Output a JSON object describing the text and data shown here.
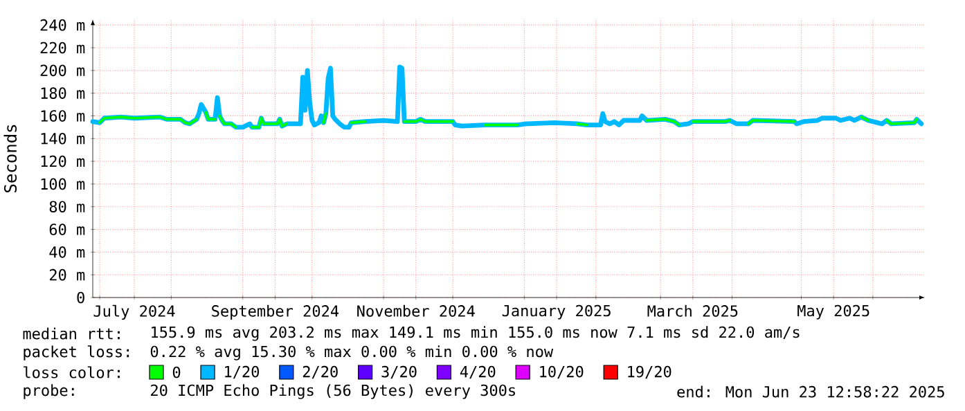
{
  "chart_data": {
    "type": "line",
    "ylabel": "Seconds",
    "legend_title": "loss color:",
    "legend": "bottom",
    "grid": true,
    "marker": "none",
    "line_style": "solid",
    "xlim": [
      "2024-06-28",
      "2025-06-23T12:58"
    ],
    "ylim": [
      0,
      245
    ],
    "xticks": [
      {
        "value": "2024-07-01",
        "label": null
      },
      {
        "value": "2024-07-16",
        "label": "July 2024"
      },
      {
        "value": "2024-08-01",
        "label": null
      },
      {
        "value": "2024-09-01",
        "label": null
      },
      {
        "value": "2024-09-15",
        "label": "September 2024"
      },
      {
        "value": "2024-10-01",
        "label": null
      },
      {
        "value": "2024-11-01",
        "label": null
      },
      {
        "value": "2024-11-15",
        "label": "November 2024"
      },
      {
        "value": "2024-12-01",
        "label": null
      },
      {
        "value": "2025-01-01",
        "label": null
      },
      {
        "value": "2025-01-15",
        "label": "January 2025"
      },
      {
        "value": "2025-02-01",
        "label": null
      },
      {
        "value": "2025-03-01",
        "label": null
      },
      {
        "value": "2025-03-15",
        "label": "March 2025"
      },
      {
        "value": "2025-04-01",
        "label": null
      },
      {
        "value": "2025-05-01",
        "label": null
      },
      {
        "value": "2025-05-15",
        "label": "May 2025"
      },
      {
        "value": "2025-06-01",
        "label": null
      }
    ],
    "yticks": [
      0,
      {
        "value": 20,
        "label": "20 m"
      },
      {
        "value": 40,
        "label": "40 m"
      },
      {
        "value": 60,
        "label": "60 m"
      },
      {
        "value": 80,
        "label": "80 m"
      },
      {
        "value": 100,
        "label": "100 m"
      },
      {
        "value": 120,
        "label": "120 m"
      },
      {
        "value": 140,
        "label": "140 m"
      },
      {
        "value": 160,
        "label": "160 m"
      },
      {
        "value": 180,
        "label": "180 m"
      },
      {
        "value": 200,
        "label": "200 m"
      },
      {
        "value": 220,
        "label": "220 m"
      },
      {
        "value": 240,
        "label": "240 m"
      }
    ],
    "x": [
      "2024-06-28",
      "2024-07-01",
      "2024-07-03",
      "2024-07-10",
      "2024-07-16",
      "2024-07-27",
      "2024-07-30",
      "2024-08-05",
      "2024-08-07",
      "2024-08-09",
      "2024-08-12",
      "2024-08-13",
      "2024-08-14",
      "2024-08-16",
      "2024-08-17",
      "2024-08-20",
      "2024-08-21",
      "2024-08-22",
      "2024-08-23",
      "2024-08-24",
      "2024-08-27",
      "2024-08-29",
      "2024-09-01",
      "2024-09-04",
      "2024-09-05",
      "2024-09-08",
      "2024-09-09",
      "2024-09-10",
      "2024-09-16",
      "2024-09-17",
      "2024-09-18",
      "2024-09-20",
      "2024-09-26",
      "2024-09-27",
      "2024-09-28",
      "2024-09-29",
      "2024-09-30",
      "2024-10-01",
      "2024-10-02",
      "2024-10-04",
      "2024-10-05",
      "2024-10-06",
      "2024-10-07",
      "2024-10-08",
      "2024-10-09",
      "2024-10-10",
      "2024-10-11",
      "2024-10-13",
      "2024-10-15",
      "2024-10-17",
      "2024-10-18",
      "2024-10-24",
      "2024-11-01",
      "2024-11-07",
      "2024-11-08",
      "2024-11-09",
      "2024-11-10",
      "2024-11-15",
      "2024-11-17",
      "2024-11-19",
      "2024-12-01",
      "2024-12-02",
      "2024-12-05",
      "2024-12-15",
      "2024-12-29",
      "2025-01-02",
      "2025-01-14",
      "2025-01-24",
      "2025-01-28",
      "2025-02-03",
      "2025-02-04",
      "2025-02-05",
      "2025-02-07",
      "2025-02-09",
      "2025-02-11",
      "2025-02-13",
      "2025-02-20",
      "2025-02-21",
      "2025-02-23",
      "2025-03-03",
      "2025-03-07",
      "2025-03-09",
      "2025-03-13",
      "2025-03-15",
      "2025-03-29",
      "2025-03-31",
      "2025-04-03",
      "2025-04-08",
      "2025-04-10",
      "2025-04-28",
      "2025-04-29",
      "2025-05-02",
      "2025-05-08",
      "2025-05-10",
      "2025-05-16",
      "2025-05-18",
      "2025-05-22",
      "2025-05-24",
      "2025-05-27",
      "2025-05-30",
      "2025-06-01",
      "2025-06-05",
      "2025-06-07",
      "2025-06-09",
      "2025-06-19",
      "2025-06-20",
      "2025-06-22"
    ],
    "series": [
      {
        "name": "0",
        "color": "#00ff00",
        "values": [
          null,
          154,
          158,
          159,
          158,
          159,
          157,
          157,
          154,
          153,
          157,
          null,
          null,
          163,
          157,
          157,
          null,
          160,
          156,
          153,
          153,
          150,
          null,
          null,
          150,
          150,
          158,
          153,
          153,
          157,
          151,
          153,
          null,
          null,
          null,
          null,
          null,
          null,
          null,
          null,
          null,
          154,
          162,
          null,
          null,
          null,
          null,
          null,
          null,
          null,
          154,
          155,
          null,
          null,
          null,
          null,
          155,
          155,
          157,
          155,
          155,
          null,
          null,
          152,
          152,
          null,
          null,
          153,
          152,
          null,
          null,
          null,
          null,
          null,
          null,
          null,
          null,
          null,
          156,
          157,
          155,
          152,
          null,
          155,
          155,
          156,
          null,
          153,
          156,
          155,
          null,
          null,
          null,
          null,
          null,
          null,
          null,
          null,
          159,
          156,
          null,
          null,
          156,
          153,
          154,
          157,
          null
        ]
      },
      {
        "name": "1/20",
        "color": "#00b8ff",
        "values": [
          155,
          154,
          158,
          159,
          158,
          159,
          157,
          157,
          154,
          153,
          157,
          162,
          170,
          163,
          157,
          157,
          176,
          160,
          156,
          153,
          153,
          150,
          150,
          153,
          150,
          150,
          158,
          153,
          153,
          157,
          151,
          153,
          153,
          194,
          165,
          200,
          172,
          156,
          152,
          154,
          160,
          154,
          162,
          193,
          202,
          160,
          157,
          153,
          150,
          150,
          154,
          155,
          156,
          155,
          203,
          202,
          155,
          155,
          157,
          155,
          155,
          152,
          151,
          152,
          152,
          153,
          154,
          153,
          152,
          152,
          162,
          155,
          153,
          155,
          152,
          156,
          156,
          160,
          156,
          157,
          155,
          152,
          153,
          155,
          155,
          156,
          153,
          153,
          156,
          155,
          153,
          155,
          156,
          158,
          158,
          156,
          158,
          156,
          159,
          156,
          155,
          153,
          156,
          153,
          154,
          157,
          153
        ]
      },
      {
        "name": "2/20",
        "color": "#0059ff",
        "values": [
          null,
          null,
          null,
          null,
          null,
          null,
          null,
          null,
          null,
          null,
          null,
          null,
          null,
          null,
          null,
          null,
          null,
          null,
          null,
          null,
          null,
          null,
          null,
          null,
          null,
          null,
          null,
          null,
          null,
          null,
          null,
          null,
          null,
          null,
          null,
          null,
          null,
          null,
          null,
          null,
          null,
          null,
          null,
          null,
          null,
          null,
          null,
          null,
          null,
          null,
          null,
          null,
          null,
          null,
          null,
          null,
          null,
          null,
          null,
          null,
          null,
          null,
          null,
          null,
          null,
          null,
          null,
          null,
          null,
          null,
          null,
          null,
          null,
          null,
          null,
          null,
          null,
          null,
          null,
          null,
          null,
          null,
          null,
          null,
          null,
          null,
          null,
          null,
          null,
          null,
          null,
          null,
          null,
          null,
          null,
          null,
          null,
          null,
          null,
          null,
          null,
          null,
          null,
          null,
          null,
          null,
          null
        ]
      },
      {
        "name": "3/20",
        "color": "#5e00ff",
        "values": [
          null,
          null,
          null,
          null,
          null,
          null,
          null,
          null,
          null,
          null,
          null,
          null,
          null,
          null,
          null,
          null,
          null,
          null,
          null,
          null,
          null,
          null,
          null,
          null,
          null,
          null,
          null,
          null,
          null,
          null,
          null,
          null,
          null,
          null,
          null,
          null,
          null,
          null,
          null,
          null,
          null,
          null,
          null,
          null,
          null,
          null,
          null,
          null,
          null,
          null,
          null,
          null,
          null,
          null,
          null,
          null,
          null,
          null,
          null,
          null,
          null,
          null,
          null,
          null,
          null,
          null,
          null,
          null,
          null,
          null,
          null,
          null,
          null,
          null,
          null,
          null,
          null,
          null,
          null,
          null,
          null,
          null,
          null,
          null,
          null,
          null,
          null,
          null,
          null,
          null,
          null,
          null,
          null,
          null,
          null,
          null,
          null,
          null,
          null,
          null,
          null,
          null,
          null,
          null,
          null,
          null,
          null
        ]
      },
      {
        "name": "4/20",
        "color": "#7e00ff",
        "values": [
          null,
          null,
          null,
          null,
          null,
          null,
          null,
          null,
          null,
          null,
          null,
          null,
          null,
          null,
          null,
          null,
          null,
          null,
          null,
          null,
          null,
          null,
          null,
          null,
          null,
          null,
          null,
          null,
          null,
          null,
          null,
          null,
          null,
          null,
          null,
          null,
          null,
          null,
          null,
          null,
          null,
          null,
          null,
          null,
          null,
          null,
          null,
          null,
          null,
          null,
          null,
          null,
          null,
          null,
          null,
          null,
          null,
          null,
          null,
          null,
          null,
          null,
          null,
          null,
          null,
          null,
          null,
          null,
          null,
          null,
          null,
          null,
          null,
          null,
          null,
          null,
          null,
          null,
          null,
          null,
          null,
          null,
          null,
          null,
          null,
          null,
          null,
          null,
          null,
          null,
          null,
          null,
          null,
          null,
          null,
          null,
          null,
          null,
          null,
          null,
          null,
          null,
          null,
          null,
          null,
          null,
          null
        ]
      },
      {
        "name": "10/20",
        "color": "#dd00ff",
        "values": [
          null,
          null,
          null,
          null,
          null,
          null,
          null,
          null,
          null,
          null,
          null,
          null,
          null,
          null,
          null,
          null,
          null,
          null,
          null,
          null,
          null,
          null,
          null,
          null,
          null,
          null,
          null,
          null,
          null,
          null,
          null,
          null,
          null,
          null,
          null,
          null,
          null,
          null,
          null,
          null,
          null,
          null,
          null,
          null,
          null,
          null,
          null,
          null,
          null,
          null,
          null,
          null,
          null,
          null,
          null,
          null,
          null,
          null,
          null,
          null,
          null,
          null,
          null,
          null,
          null,
          null,
          null,
          null,
          null,
          null,
          null,
          null,
          null,
          null,
          null,
          null,
          null,
          null,
          null,
          null,
          null,
          null,
          null,
          null,
          null,
          null,
          null,
          null,
          null,
          null,
          null,
          null,
          null,
          null,
          null,
          null,
          null,
          null,
          null,
          null,
          null,
          null,
          null,
          null,
          null,
          null,
          null
        ]
      },
      {
        "name": "19/20",
        "color": "#ff0000",
        "values": [
          null,
          null,
          null,
          null,
          null,
          null,
          null,
          null,
          null,
          null,
          null,
          null,
          null,
          null,
          null,
          null,
          null,
          null,
          null,
          null,
          null,
          null,
          null,
          null,
          null,
          null,
          null,
          null,
          null,
          null,
          null,
          null,
          null,
          null,
          null,
          null,
          null,
          null,
          null,
          null,
          null,
          null,
          null,
          null,
          null,
          null,
          null,
          null,
          null,
          null,
          null,
          null,
          null,
          null,
          null,
          null,
          null,
          null,
          null,
          null,
          null,
          null,
          null,
          null,
          null,
          null,
          null,
          null,
          null,
          null,
          null,
          null,
          null,
          null,
          null,
          null,
          null,
          null,
          null,
          null,
          null,
          null,
          null,
          null,
          null,
          null,
          null,
          null,
          null,
          null,
          null,
          null,
          null,
          null,
          null,
          null,
          null,
          null,
          null,
          null,
          null,
          null,
          null,
          null,
          null,
          null,
          null
        ]
      }
    ],
    "annotations": [
      "median rtt:",
      "155.9 ms avg  203.2 ms max  149.1 ms min  155.0 ms now  7.1 ms sd  22.0   am/s",
      "packet loss:",
      "0.22 % avg  15.30 % max  0.00 % min  0.00 % now",
      "probe:",
      "20 ICMP Echo Pings (56 Bytes) every 300s",
      "end: Mon Jun 23 12:58:22 2025"
    ]
  }
}
